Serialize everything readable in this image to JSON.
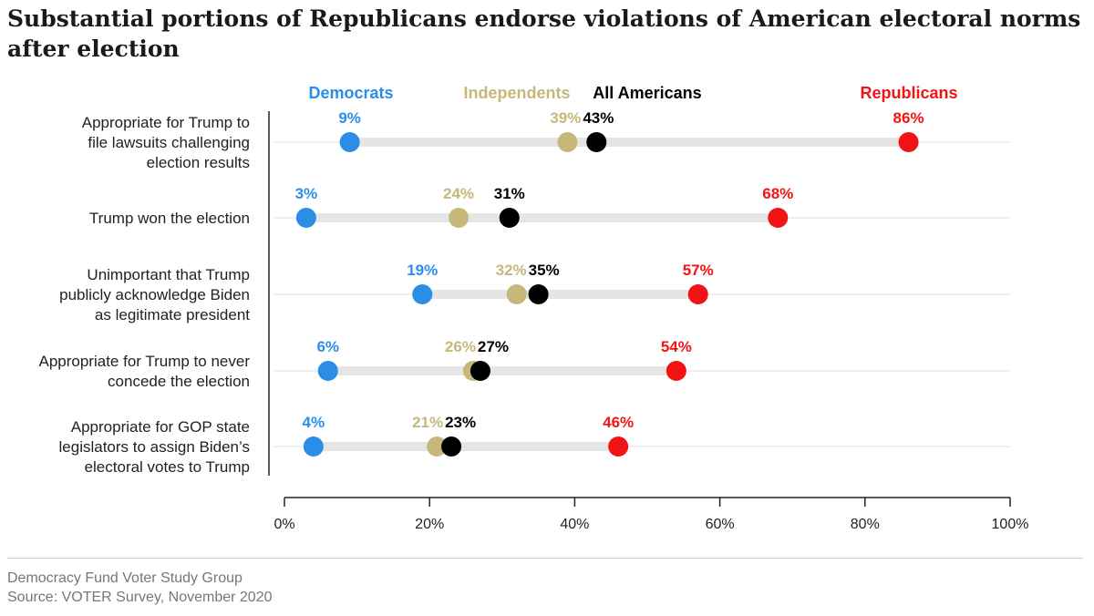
{
  "chart_data": {
    "type": "dot",
    "title": "Substantial portions of Republicans endorse violations of American electoral norms after election",
    "xlim": [
      0,
      100
    ],
    "x_ticks": [
      "0%",
      "20%",
      "40%",
      "60%",
      "80%",
      "100%"
    ],
    "legend_placement": "top",
    "categories": [
      "Appropriate for Trump to file lawsuits challenging election results",
      "Trump won the election",
      "Unimportant that Trump publicly acknowledge Biden as legitimate president",
      "Appropriate for Trump to never concede the election",
      "Appropriate for GOP state legislators to assign Biden’s electoral votes to Trump"
    ],
    "category_lines": [
      [
        "Appropriate for Trump to",
        "file lawsuits challenging",
        "election results"
      ],
      [
        "Trump won the election"
      ],
      [
        "Unimportant that Trump",
        "publicly acknowledge Biden",
        "as legitimate president"
      ],
      [
        "Appropriate for Trump to never",
        "concede the election"
      ],
      [
        "Appropriate for GOP state",
        "legislators to assign Biden’s",
        "electoral votes to Trump"
      ]
    ],
    "series": [
      {
        "name": "Democrats",
        "color": "#2b8ee6",
        "values": [
          9,
          3,
          19,
          6,
          4
        ],
        "labels": [
          "9%",
          "3%",
          "19%",
          "6%",
          "4%"
        ]
      },
      {
        "name": "Independents",
        "color": "#c5b87a",
        "values": [
          39,
          24,
          32,
          26,
          21
        ],
        "labels": [
          "39%",
          "24%",
          "32%",
          "26%",
          "21%"
        ]
      },
      {
        "name": "All Americans",
        "color": "#000000",
        "values": [
          43,
          31,
          35,
          27,
          23
        ],
        "labels": [
          "43%",
          "31%",
          "35%",
          "27%",
          "23%"
        ]
      },
      {
        "name": "Republicans",
        "color": "#f21414",
        "values": [
          86,
          68,
          57,
          54,
          46
        ],
        "labels": [
          "86%",
          "68%",
          "57%",
          "54%",
          "46%"
        ]
      }
    ],
    "range_bar_color": "#e5e5e5",
    "gridline_color": "#e0e0e0"
  },
  "footer": {
    "line1": "Democracy Fund Voter Study Group",
    "line2": "Source: VOTER Survey, November 2020"
  }
}
